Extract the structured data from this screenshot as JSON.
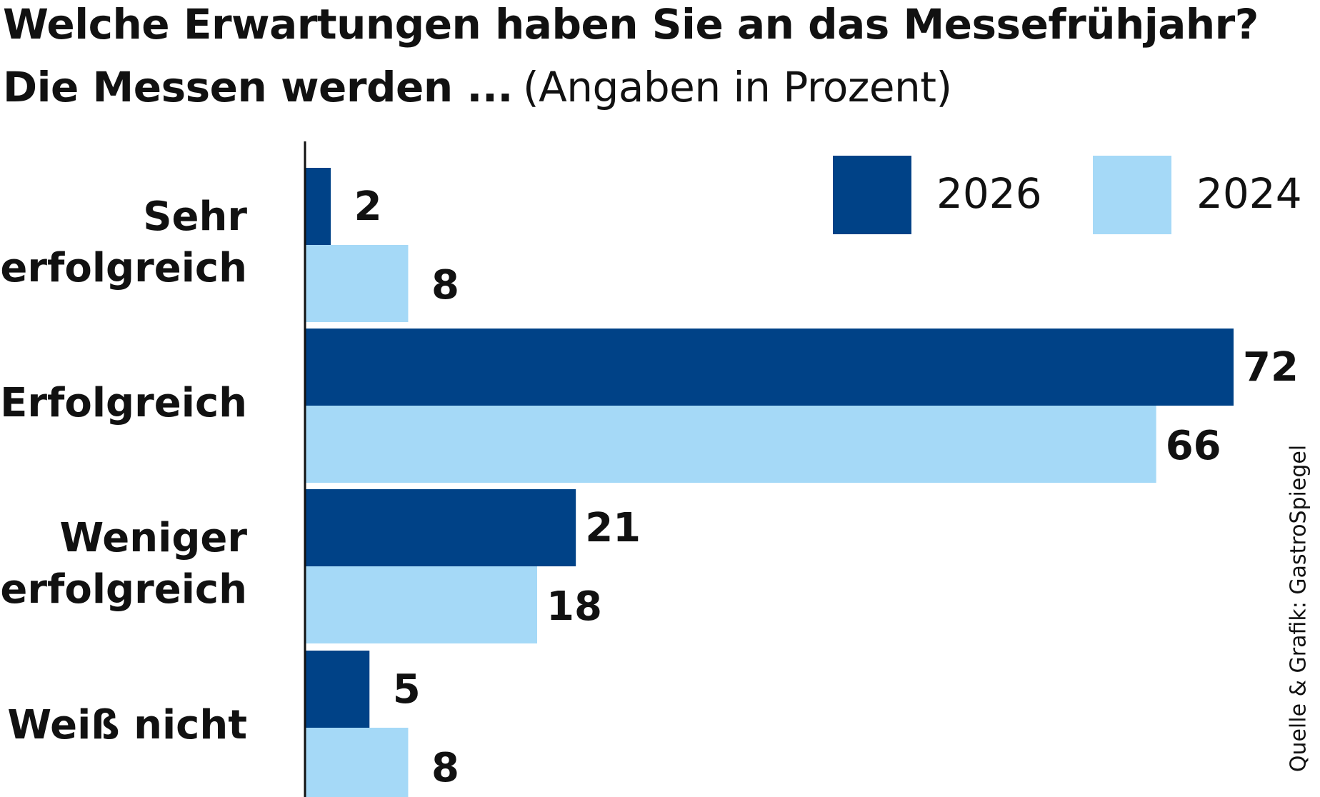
{
  "chart_data": {
    "type": "bar",
    "orientation": "horizontal",
    "title": "Welche Erwartungen haben Sie an das Messefrühjahr?",
    "subtitle_bold": "Die Messen werden ...",
    "subtitle_light": "(Angaben in Prozent)",
    "categories": [
      [
        "Sehr",
        "erfolgreich"
      ],
      [
        "Erfolgreich"
      ],
      [
        "Weniger",
        "erfolgreich"
      ],
      [
        "Weiß nicht"
      ]
    ],
    "series": [
      {
        "name": "2026",
        "color": "#004287",
        "values": [
          2,
          72,
          21,
          5
        ]
      },
      {
        "name": "2024",
        "color": "#a5d9f7",
        "values": [
          8,
          66,
          18,
          8
        ]
      }
    ],
    "xlim": [
      0,
      72
    ],
    "legend_position": "top-right",
    "source": "Quelle & Grafik: GastroSpiegel"
  }
}
